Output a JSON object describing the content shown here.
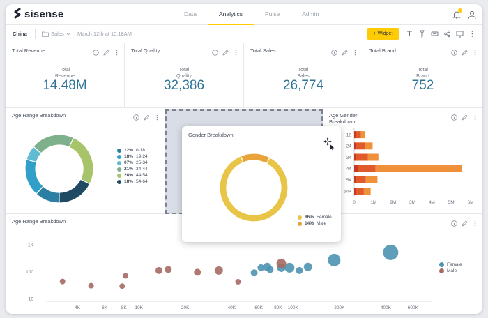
{
  "app": {
    "logo_text": "sisense"
  },
  "nav": {
    "tabs": [
      "Data",
      "Analytics",
      "Pulse",
      "Admin"
    ],
    "active": "Analytics"
  },
  "toolbar": {
    "dashboard_name": "China",
    "folder": "Sales",
    "last_modified": "March 12th at 10:18AM",
    "widget_button": "+ Widget"
  },
  "kpis": [
    {
      "title": "Total Revenue",
      "label_line1": "Total",
      "label_line2": "Revenue",
      "value": "14.48M"
    },
    {
      "title": "Total Quality",
      "label_line1": "Total",
      "label_line2": "Quality",
      "value": "32,386"
    },
    {
      "title": "Total Sales",
      "label_line1": "Total",
      "label_line2": "Sales",
      "value": "26,774"
    },
    {
      "title": "Total Brand",
      "label_line1": "Total",
      "label_line2": "Brand",
      "value": "752"
    }
  ],
  "donut_widget": {
    "title": "Age Range Breakdown",
    "legend": [
      {
        "pct": "12%",
        "label": "0-18",
        "color": "#2b7fa3"
      },
      {
        "pct": "18%",
        "label": "19-24",
        "color": "#31a0c9"
      },
      {
        "pct": "07%",
        "label": "25-34",
        "color": "#5fbcd3"
      },
      {
        "pct": "21%",
        "label": "34-44",
        "color": "#7fb08c"
      },
      {
        "pct": "26%",
        "label": "44-54",
        "color": "#a8c46a"
      },
      {
        "pct": "18%",
        "label": "54-64",
        "color": "#1e4b63"
      }
    ]
  },
  "bar_widget": {
    "title_line1": "Age Gender",
    "title_line2": "Breakdown"
  },
  "gender_widget": {
    "title": "Gender Breakdown",
    "legend": [
      {
        "pct": "86%",
        "label": "Female",
        "color": "#e8c547"
      },
      {
        "pct": "14%",
        "label": "Male",
        "color": "#e8a33a"
      }
    ]
  },
  "bubble_widget": {
    "title": "Age Range Breakdown",
    "legend": [
      {
        "label": "Female",
        "color": "#4e94b0"
      },
      {
        "label": "Male",
        "color": "#a56a63"
      }
    ]
  },
  "chart_data": [
    {
      "type": "pie",
      "title": "Age Range Breakdown",
      "categories": [
        "0-18",
        "19-24",
        "25-34",
        "34-44",
        "44-54",
        "54-64"
      ],
      "values": [
        12,
        18,
        7,
        21,
        26,
        18
      ],
      "colors": [
        "#2b7fa3",
        "#31a0c9",
        "#5fbcd3",
        "#7fb08c",
        "#a8c46a",
        "#1e4b63"
      ],
      "legend": "right"
    },
    {
      "type": "bar",
      "title": "Age Gender Breakdown",
      "orientation": "horizontal",
      "stacked": true,
      "categories": [
        "18",
        "24",
        "34",
        "44",
        "54",
        "64+"
      ],
      "series": [
        {
          "values": [
            0.1,
            0.1,
            0.1,
            0.2,
            0.1,
            0.1
          ],
          "color": "#c63b1f"
        },
        {
          "values": [
            0.25,
            0.45,
            0.6,
            0.9,
            0.5,
            0.4
          ],
          "color": "#e05a2b"
        },
        {
          "values": [
            0.2,
            0.4,
            0.55,
            4.45,
            0.6,
            0.35
          ],
          "color": "#f0903a"
        }
      ],
      "xticks": [
        "0",
        "1M",
        "2M",
        "3M",
        "4M",
        "5M",
        "6M"
      ],
      "xlim": [
        0,
        6
      ]
    },
    {
      "type": "pie",
      "title": "Gender Breakdown",
      "categories": [
        "Female",
        "Male"
      ],
      "values": [
        86,
        14
      ],
      "colors": [
        "#e8c547",
        "#e8a33a"
      ],
      "legend": "bottom-right"
    },
    {
      "type": "scatter",
      "title": "Age Range Breakdown",
      "log_x": true,
      "log_y": true,
      "xticks": [
        "4K",
        "6K",
        "8K",
        "10K",
        "20K",
        "40K",
        "60K",
        "80K",
        "100K",
        "200K",
        "400K",
        "600K"
      ],
      "yticks": [
        "1K",
        "100",
        "10"
      ],
      "legend": "right",
      "series": [
        {
          "name": "Female",
          "color": "#4e94b0",
          "points": [
            {
              "x": 56000,
              "y": 90,
              "r": 5
            },
            {
              "x": 62000,
              "y": 140,
              "r": 5
            },
            {
              "x": 68000,
              "y": 150,
              "r": 6
            },
            {
              "x": 71000,
              "y": 120,
              "r": 5
            },
            {
              "x": 84000,
              "y": 140,
              "r": 6
            },
            {
              "x": 95000,
              "y": 140,
              "r": 7
            },
            {
              "x": 110000,
              "y": 110,
              "r": 5
            },
            {
              "x": 125000,
              "y": 150,
              "r": 6
            },
            {
              "x": 185000,
              "y": 270,
              "r": 9
            },
            {
              "x": 430000,
              "y": 520,
              "r": 11
            }
          ]
        },
        {
          "name": "Male",
          "color": "#a56a63",
          "points": [
            {
              "x": 3200,
              "y": 43,
              "r": 4
            },
            {
              "x": 4900,
              "y": 30,
              "r": 4
            },
            {
              "x": 7800,
              "y": 29,
              "r": 4
            },
            {
              "x": 8200,
              "y": 70,
              "r": 4
            },
            {
              "x": 13500,
              "y": 110,
              "r": 5
            },
            {
              "x": 15500,
              "y": 120,
              "r": 5
            },
            {
              "x": 24000,
              "y": 95,
              "r": 5
            },
            {
              "x": 33000,
              "y": 110,
              "r": 6
            },
            {
              "x": 44000,
              "y": 42,
              "r": 4
            },
            {
              "x": 84000,
              "y": 200,
              "r": 7
            }
          ]
        }
      ]
    }
  ]
}
